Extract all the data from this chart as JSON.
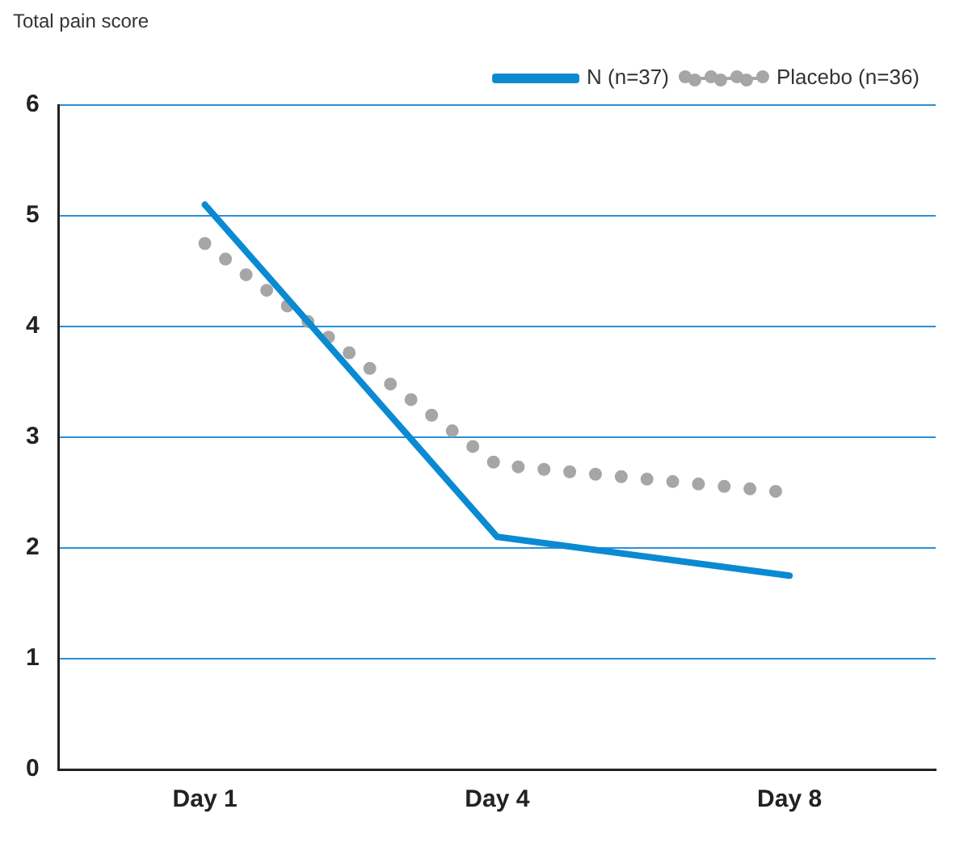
{
  "chart_data": {
    "type": "line",
    "ylabel": "Total pain score",
    "categories": [
      "Day 1",
      "Day 4",
      "Day 8"
    ],
    "series": [
      {
        "name": "N (n=37)",
        "color": "#0a8ad2",
        "values": [
          5.1,
          2.1,
          1.75
        ],
        "line_style": "solid"
      },
      {
        "name": "Placebo (n=36)",
        "color": "#a6a6a6",
        "values": [
          4.75,
          2.75,
          2.5
        ],
        "line_style": "dotted"
      }
    ],
    "ylim": [
      0,
      6
    ],
    "yticks": [
      0,
      1,
      2,
      3,
      4,
      5,
      6
    ],
    "grid": "y",
    "legend": "top right",
    "marker": "none"
  }
}
